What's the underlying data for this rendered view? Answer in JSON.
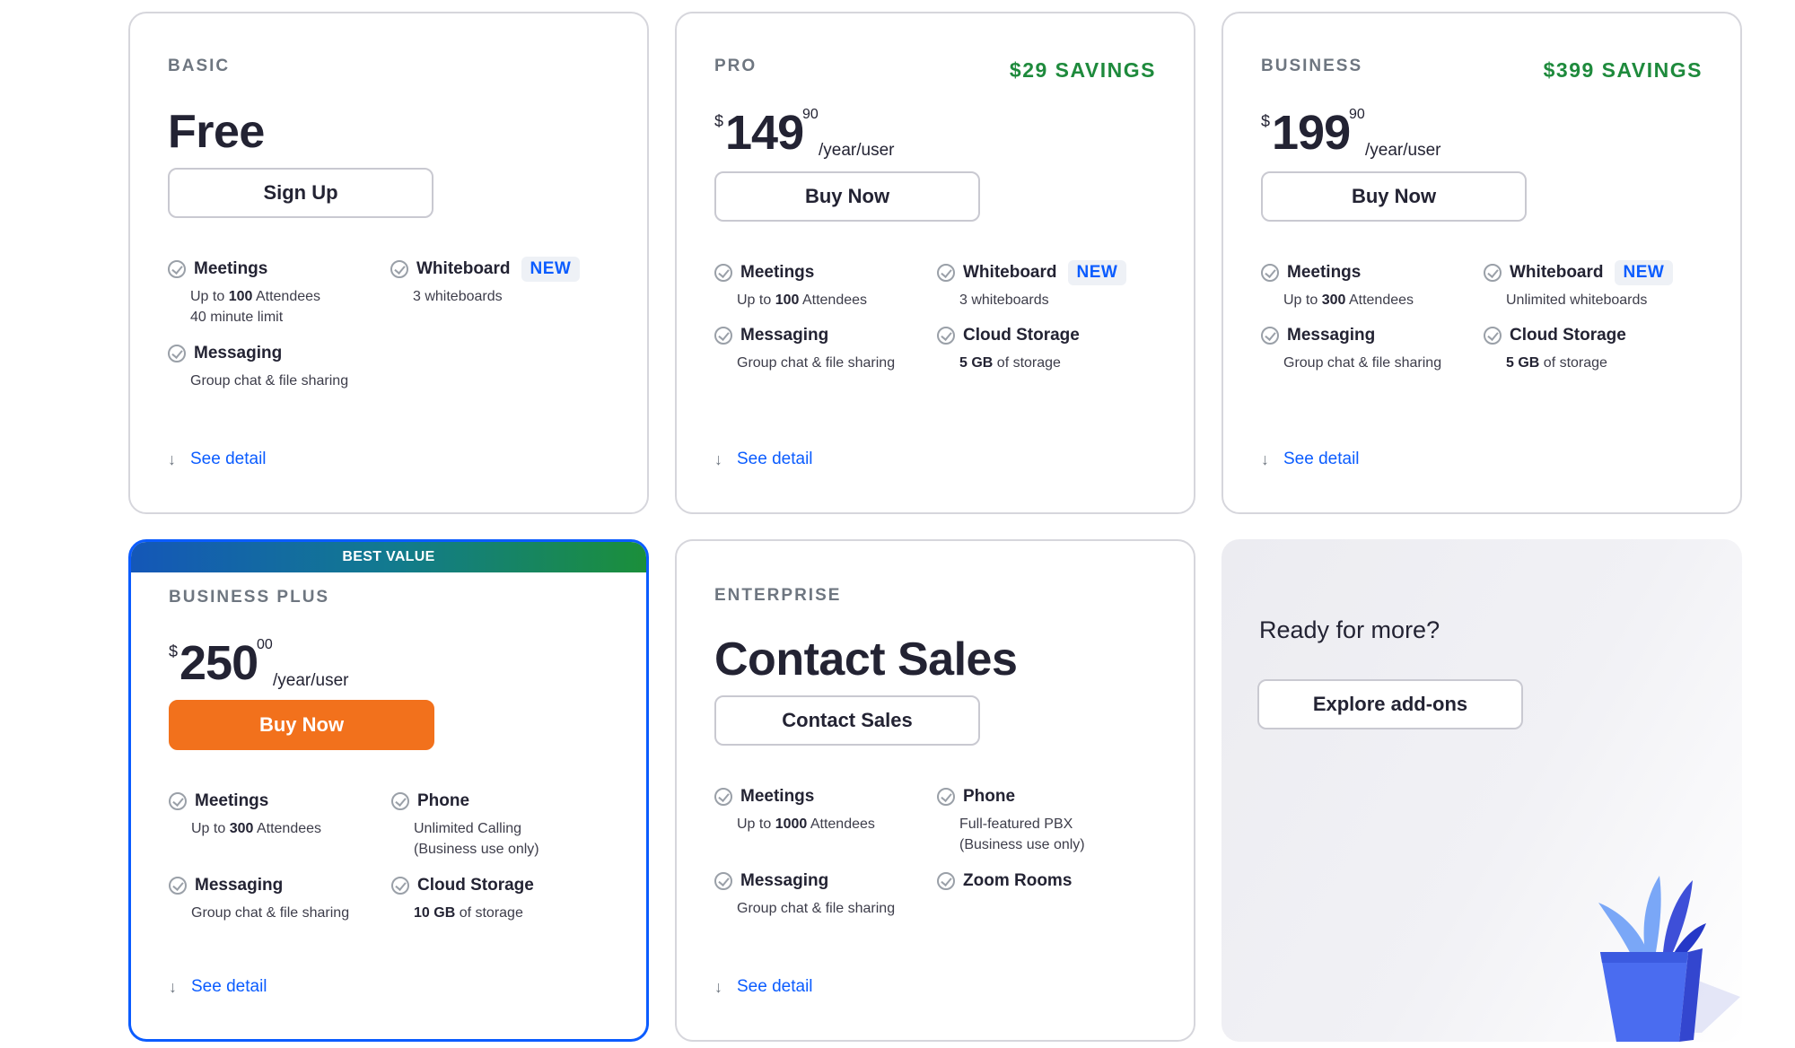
{
  "cards": {
    "basic": {
      "tier": "BASIC",
      "title": "Free",
      "button": "Sign Up",
      "features": [
        {
          "title": "Meetings",
          "desc_pre": "Up to ",
          "desc_bold": "100",
          "desc_post": " Attendees",
          "desc2": "40 minute limit"
        },
        {
          "title": "Whiteboard",
          "badge": "NEW",
          "desc": "3 whiteboards"
        },
        {
          "title": "Messaging",
          "desc": "Group chat & file sharing"
        }
      ],
      "see_detail": "See detail"
    },
    "pro": {
      "tier": "PRO",
      "savings": "$29 SAVINGS",
      "currency": "$",
      "price": "149",
      "cents": "90",
      "per": "/year/user",
      "button": "Buy Now",
      "features": [
        {
          "title": "Meetings",
          "desc_pre": "Up to ",
          "desc_bold": "100",
          "desc_post": " Attendees"
        },
        {
          "title": "Whiteboard",
          "badge": "NEW",
          "desc": "3 whiteboards"
        },
        {
          "title": "Messaging",
          "desc": "Group chat & file sharing"
        },
        {
          "title": "Cloud Storage",
          "desc_bold": "5 GB",
          "desc_post": " of storage"
        }
      ],
      "see_detail": "See detail"
    },
    "business": {
      "tier": "BUSINESS",
      "savings": "$399 SAVINGS",
      "currency": "$",
      "price": "199",
      "cents": "90",
      "per": "/year/user",
      "button": "Buy Now",
      "features": [
        {
          "title": "Meetings",
          "desc_pre": "Up to ",
          "desc_bold": "300",
          "desc_post": " Attendees"
        },
        {
          "title": "Whiteboard",
          "badge": "NEW",
          "desc": "Unlimited whiteboards"
        },
        {
          "title": "Messaging",
          "desc": "Group chat & file sharing"
        },
        {
          "title": "Cloud Storage",
          "desc_bold": "5 GB",
          "desc_post": " of storage"
        }
      ],
      "see_detail": "See detail"
    },
    "business_plus": {
      "banner": "BEST VALUE",
      "tier": "BUSINESS PLUS",
      "currency": "$",
      "price": "250",
      "cents": "00",
      "per": "/year/user",
      "button": "Buy Now",
      "features": [
        {
          "title": "Meetings",
          "desc_pre": "Up to ",
          "desc_bold": "300",
          "desc_post": " Attendees"
        },
        {
          "title": "Phone",
          "desc": "Unlimited Calling",
          "desc2": "(Business use only)"
        },
        {
          "title": "Messaging",
          "desc": "Group chat & file sharing"
        },
        {
          "title": "Cloud Storage",
          "desc_bold": "10 GB",
          "desc_post": " of storage"
        }
      ],
      "see_detail": "See detail"
    },
    "enterprise": {
      "tier": "ENTERPRISE",
      "title": "Contact Sales",
      "button": "Contact Sales",
      "features": [
        {
          "title": "Meetings",
          "desc_pre": "Up to ",
          "desc_bold": "1000",
          "desc_post": " Attendees"
        },
        {
          "title": "Phone",
          "desc": "Full-featured PBX",
          "desc2": "(Business use only)"
        },
        {
          "title": "Messaging",
          "desc": "Group chat & file sharing"
        },
        {
          "title": "Zoom Rooms"
        }
      ],
      "see_detail": "See detail"
    },
    "addons": {
      "heading": "Ready for more?",
      "button": "Explore add-ons",
      "illustration": "plant-pot-icon"
    }
  },
  "colors": {
    "accent_blue": "#0b5cff",
    "savings_green": "#1e8a3c",
    "primary_orange": "#f2711c",
    "border_gray": "#d6d6dc"
  }
}
